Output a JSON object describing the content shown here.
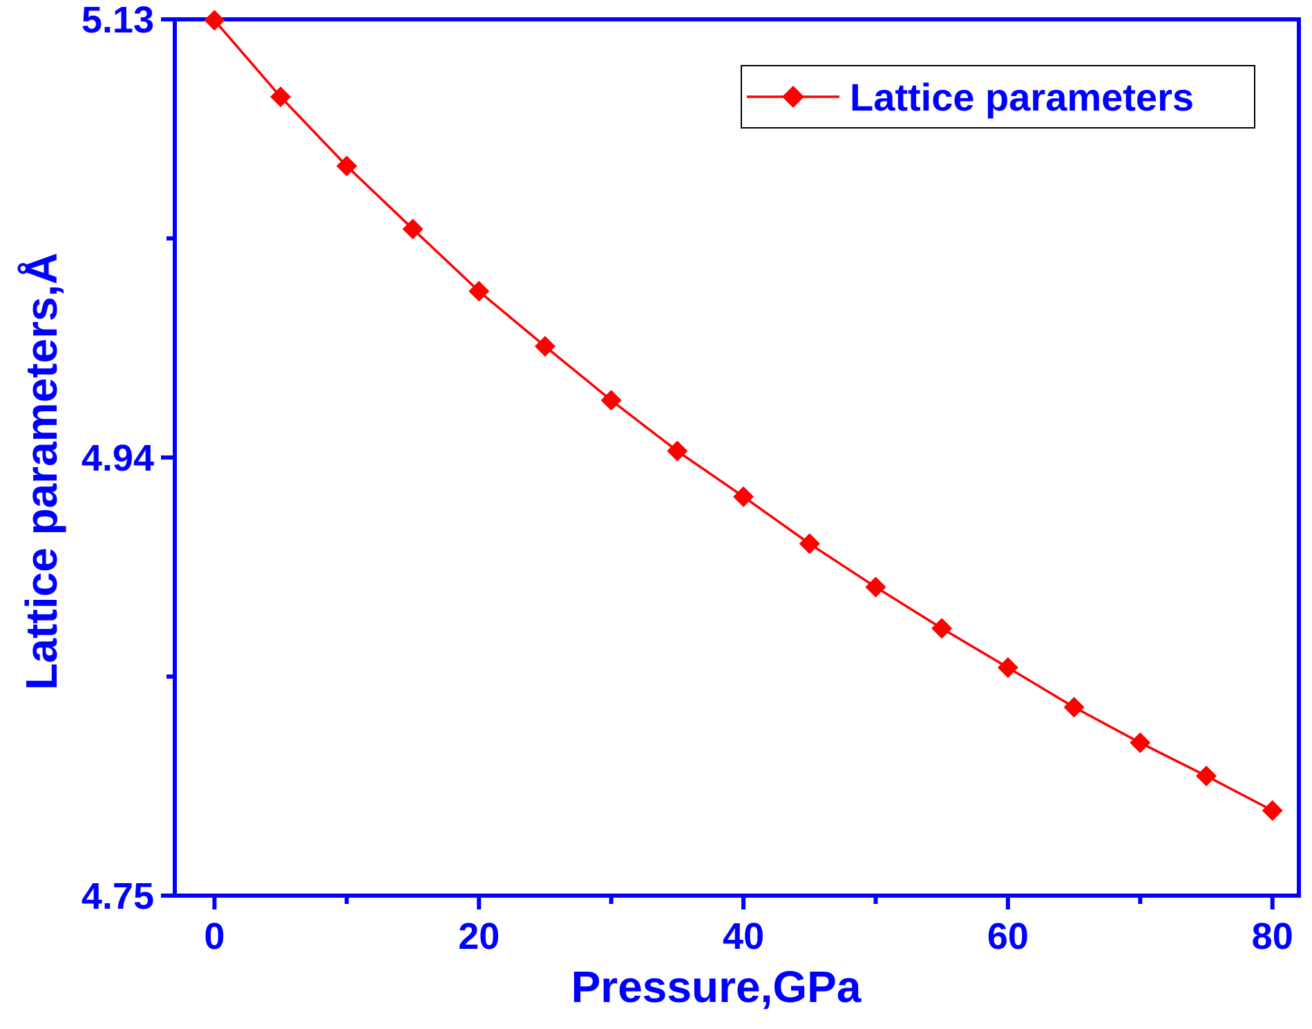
{
  "chart_data": {
    "type": "line",
    "title": "",
    "xlabel": "Pressure,GPa",
    "ylabel": "Lattice parameters,Å",
    "xlim": [
      -3,
      82
    ],
    "ylim": [
      4.75,
      5.13
    ],
    "x_major_ticks": [
      0,
      20,
      40,
      60,
      80
    ],
    "x_tick_labels": [
      "0",
      "20",
      "40",
      "60",
      "80"
    ],
    "x_minor_ticks": [
      10,
      30,
      50,
      70
    ],
    "y_major_ticks": [
      4.75,
      4.94,
      5.13
    ],
    "y_tick_labels": [
      "4.75",
      "4.94",
      "5.13"
    ],
    "y_minor_ticks": [
      4.845,
      5.035
    ],
    "grid": false,
    "legend_position": "top-right",
    "series": [
      {
        "name": "Lattice parameters",
        "marker": "diamond",
        "color": "#ff0000",
        "x": [
          0,
          5,
          10,
          15,
          20,
          25,
          30,
          35,
          40,
          45,
          50,
          55,
          60,
          65,
          70,
          75,
          80
        ],
        "values": [
          5.1296,
          5.0964,
          5.0664,
          5.0391,
          5.0121,
          4.9882,
          4.9648,
          4.9428,
          4.923,
          4.9026,
          4.8838,
          4.8659,
          4.8489,
          4.8317,
          4.8163,
          4.8019,
          4.7869
        ]
      }
    ]
  },
  "colors": {
    "axis": "#0000ff",
    "text": "#0000ff",
    "series": "#ff0000",
    "legend_border": "#000000",
    "background": "#ffffff"
  }
}
